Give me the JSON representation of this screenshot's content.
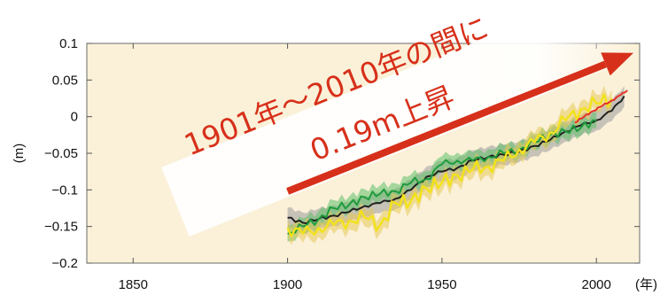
{
  "chart_data": {
    "type": "line",
    "title": "",
    "ylabel": "(m)",
    "xlabel": "(年)",
    "xlim": [
      1835,
      2014
    ],
    "ylim": [
      -0.2,
      0.1
    ],
    "xticks": [
      "1850",
      "1900",
      "1950",
      "2000"
    ],
    "xtick_values": [
      1850,
      1900,
      1950,
      2000
    ],
    "yticks": [
      "0.1",
      "0.05",
      "0",
      "−0.05",
      "−0.1",
      "−0.15",
      "−0.2"
    ],
    "ytick_values": [
      0.1,
      0.05,
      0,
      -0.05,
      -0.1,
      -0.15,
      -0.2
    ],
    "grid": false,
    "background_color": "#fbf1d9",
    "annotation": {
      "line1": "1901年～2010年の間に",
      "line2": "0.19m上昇",
      "arrow_from": [
        1900,
        -0.102
      ],
      "arrow_to": [
        2012,
        0.087
      ],
      "color": "#d7301a"
    },
    "series": [
      {
        "color": "#222222",
        "band_color": "#9a9a9a",
        "x": [
          1900,
          1905,
          1910,
          1915,
          1920,
          1925,
          1930,
          1935,
          1940,
          1945,
          1950,
          1955,
          1960,
          1965,
          1970,
          1975,
          1980,
          1985,
          1990,
          1995,
          2000,
          2005,
          2009
        ],
        "values": [
          -0.138,
          -0.145,
          -0.14,
          -0.135,
          -0.13,
          -0.122,
          -0.118,
          -0.112,
          -0.1,
          -0.082,
          -0.075,
          -0.07,
          -0.06,
          -0.055,
          -0.052,
          -0.048,
          -0.04,
          -0.032,
          -0.02,
          -0.012,
          -0.005,
          0.008,
          0.028
        ]
      },
      {
        "color": "#1f9b3c",
        "band_color": "#5fbf6a",
        "x": [
          1900,
          1905,
          1910,
          1915,
          1920,
          1925,
          1930,
          1935,
          1940,
          1945,
          1950,
          1955,
          1960,
          1965,
          1970,
          1975,
          1980,
          1985,
          1990,
          1995,
          2000
        ],
        "values": [
          -0.16,
          -0.15,
          -0.14,
          -0.125,
          -0.12,
          -0.11,
          -0.105,
          -0.102,
          -0.09,
          -0.085,
          -0.065,
          -0.06,
          -0.06,
          -0.055,
          -0.05,
          -0.045,
          -0.035,
          -0.025,
          -0.02,
          -0.015,
          -0.005
        ]
      },
      {
        "color": "#f2e21a",
        "band_color": "#e8c85a",
        "x": [
          1900,
          1905,
          1910,
          1915,
          1920,
          1925,
          1930,
          1935,
          1940,
          1945,
          1950,
          1955,
          1960,
          1965,
          1970,
          1975,
          1980,
          1985,
          1990,
          1995,
          2000,
          2005
        ],
        "values": [
          -0.152,
          -0.16,
          -0.152,
          -0.148,
          -0.142,
          -0.138,
          -0.148,
          -0.118,
          -0.115,
          -0.098,
          -0.09,
          -0.08,
          -0.072,
          -0.068,
          -0.06,
          -0.045,
          -0.035,
          -0.022,
          -0.005,
          0.01,
          0.018,
          0.025
        ]
      },
      {
        "color": "#e4332a",
        "band_color": "#e4332a",
        "x": [
          1993,
          1996,
          1999,
          2002,
          2005,
          2008,
          2010
        ],
        "values": [
          -0.008,
          0.0,
          0.008,
          0.015,
          0.022,
          0.03,
          0.036
        ]
      }
    ]
  }
}
